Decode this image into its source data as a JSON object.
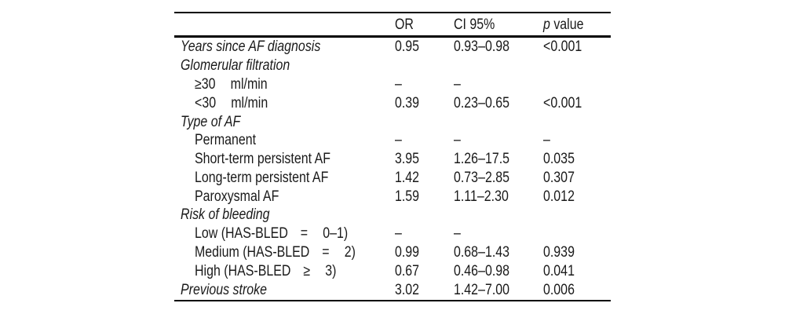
{
  "page": {
    "background": "#ffffff",
    "text_color": "#1a1a1a",
    "rule_color": "#000000"
  },
  "table": {
    "header": {
      "or": "OR",
      "ci": "CI 95%",
      "p_italic": "p",
      "p_rest": " value"
    },
    "rows": [
      {
        "label": "Years since AF diagnosis",
        "italic": true,
        "indent": false,
        "or": "0.95",
        "ci": "0.93–0.98",
        "p": "<0.001"
      },
      {
        "label": "Glomerular filtration",
        "italic": true,
        "indent": false,
        "or": "",
        "ci": "",
        "p": ""
      },
      {
        "label": "≥30  ml/min",
        "italic": false,
        "indent": true,
        "or": "–",
        "ci": "–",
        "p": ""
      },
      {
        "label": "<30  ml/min",
        "italic": false,
        "indent": true,
        "or": "0.39",
        "ci": "0.23–0.65",
        "p": "<0.001"
      },
      {
        "label": "Type of AF",
        "italic": true,
        "indent": false,
        "or": "",
        "ci": "",
        "p": ""
      },
      {
        "label": "Permanent",
        "italic": false,
        "indent": true,
        "or": "–",
        "ci": "–",
        "p": "–"
      },
      {
        "label": "Short-term persistent AF",
        "italic": false,
        "indent": true,
        "or": "3.95",
        "ci": "1.26–17.5",
        "p": "0.035"
      },
      {
        "label": "Long-term persistent AF",
        "italic": false,
        "indent": true,
        "or": "1.42",
        "ci": "0.73–2.85",
        "p": "0.307"
      },
      {
        "label": "Paroxysmal AF",
        "italic": false,
        "indent": true,
        "or": "1.59",
        "ci": "1.11–2.30",
        "p": "0.012"
      },
      {
        "label": "Risk of bleeding",
        "italic": true,
        "indent": false,
        "or": "",
        "ci": "",
        "p": ""
      },
      {
        "label": "Low (HAS-BLED =  0–1)",
        "italic": false,
        "indent": true,
        "or": "–",
        "ci": "–",
        "p": ""
      },
      {
        "label": "Medium (HAS-BLED =  2)",
        "italic": false,
        "indent": true,
        "or": "0.99",
        "ci": "0.68–1.43",
        "p": "0.939"
      },
      {
        "label": "High (HAS-BLED ≥  3)",
        "italic": false,
        "indent": true,
        "or": "0.67",
        "ci": "0.46–0.98",
        "p": "0.041"
      },
      {
        "label": "Previous stroke",
        "italic": true,
        "indent": false,
        "or": "3.02",
        "ci": "1.42–7.00",
        "p": "0.006"
      }
    ]
  }
}
